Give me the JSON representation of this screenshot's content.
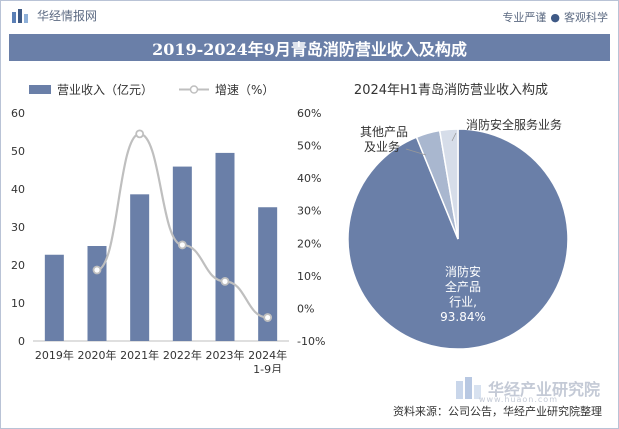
{
  "header": {
    "brand": "华经情报网",
    "slogan_left": "专业严谨",
    "slogan_dot": "●",
    "slogan_right": "客观科学"
  },
  "title": "2019-2024年9月青岛消防营业收入及构成",
  "chart_data": [
    {
      "type": "bar",
      "categories": [
        "2019年",
        "2020年",
        "2021年",
        "2022年",
        "2023年",
        "2024年 1-9月"
      ],
      "category_lines": [
        [
          "2019年"
        ],
        [
          "2020年"
        ],
        [
          "2021年"
        ],
        [
          "2022年"
        ],
        [
          "2023年"
        ],
        [
          "2024年",
          "1-9月"
        ]
      ],
      "series": [
        {
          "name": "营业收入（亿元）",
          "type": "bar",
          "axis": "left",
          "color": "#6a7fa8",
          "values": [
            22.7,
            25.0,
            38.6,
            45.9,
            49.5,
            35.2
          ]
        },
        {
          "name": "增速（%）",
          "type": "line",
          "axis": "right",
          "color": "#bfbfbf",
          "values": [
            null,
            11.8,
            53.6,
            19.5,
            8.3,
            -2.8
          ]
        }
      ],
      "ylim": [
        0,
        60
      ],
      "yticks": [
        0,
        10,
        20,
        30,
        40,
        50,
        60
      ],
      "y2lim": [
        -10,
        60
      ],
      "y2ticks": [
        "-10%",
        "0%",
        "10%",
        "20%",
        "30%",
        "40%",
        "50%",
        "60%"
      ],
      "y2tick_values": [
        -10,
        0,
        10,
        20,
        30,
        40,
        50,
        60
      ],
      "legend": "top-left"
    },
    {
      "type": "pie",
      "title": "2024年H1青岛消防营业收入构成",
      "labels": [
        "消防安全产品行业",
        "其他产品及业务",
        "消防安全服务业务"
      ],
      "values": [
        93.84,
        3.5,
        2.66
      ],
      "colors": [
        "#6a7fa8",
        "#a9b7cf",
        "#d6dde9"
      ],
      "main_label_lines": [
        "消防安",
        "全产品",
        "行业,",
        "93.84%"
      ],
      "other_label_lines": [
        "其他产品",
        "及业务"
      ],
      "service_label": "消防安全服务业务"
    }
  ],
  "footer": {
    "brand": "华经产业研究院",
    "url": "www.huaon.com",
    "source": "资料来源：公司公告，华经产业研究院整理"
  }
}
